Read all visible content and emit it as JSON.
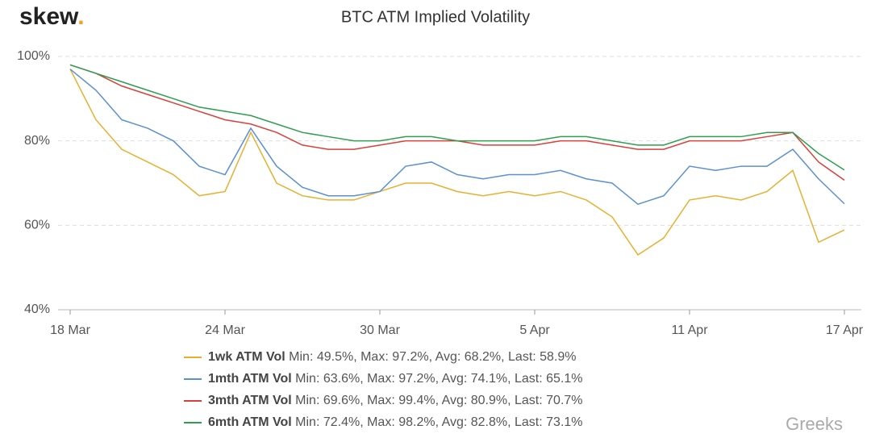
{
  "brand": "skew",
  "brand_dot": ".",
  "watermark": "Greeks",
  "chart_data": {
    "type": "line",
    "title": "BTC ATM Implied Volatility",
    "categories": [
      "18 Mar",
      "19 Mar",
      "20 Mar",
      "21 Mar",
      "22 Mar",
      "23 Mar",
      "24 Mar",
      "25 Mar",
      "26 Mar",
      "27 Mar",
      "28 Mar",
      "29 Mar",
      "30 Mar",
      "31 Mar",
      "1 Apr",
      "2 Apr",
      "3 Apr",
      "4 Apr",
      "5 Apr",
      "6 Apr",
      "7 Apr",
      "8 Apr",
      "9 Apr",
      "10 Apr",
      "11 Apr",
      "12 Apr",
      "13 Apr",
      "14 Apr",
      "15 Apr",
      "16 Apr",
      "17 Apr"
    ],
    "xticks": [
      "18 Mar",
      "24 Mar",
      "30 Mar",
      "5 Apr",
      "11 Apr",
      "17 Apr"
    ],
    "ylim": [
      40,
      100
    ],
    "yticks": [
      {
        "value": 40,
        "label": "40%"
      },
      {
        "value": 60,
        "label": "60%"
      },
      {
        "value": 80,
        "label": "80%"
      },
      {
        "value": 100,
        "label": "100%"
      }
    ],
    "grid": true,
    "series": [
      {
        "name": "1wk ATM Vol",
        "stats": "Min: 49.5%, Max: 97.2%, Avg: 68.2%, Last: 58.9%",
        "color": "#e8b030",
        "values": [
          97,
          85,
          78,
          75,
          72,
          67,
          68,
          82,
          70,
          67,
          66,
          66,
          68,
          70,
          70,
          68,
          67,
          68,
          67,
          68,
          66,
          62,
          53,
          57,
          66,
          67,
          66,
          68,
          73,
          56,
          58.9
        ]
      },
      {
        "name": "1mth ATM Vol",
        "stats": "Min: 63.6%, Max: 97.2%, Avg: 74.1%, Last: 65.1%",
        "color": "#5b8fd6",
        "values": [
          97,
          92,
          85,
          83,
          80,
          74,
          72,
          83,
          74,
          69,
          67,
          67,
          68,
          74,
          75,
          72,
          71,
          72,
          72,
          73,
          71,
          70,
          65,
          67,
          74,
          73,
          74,
          74,
          78,
          71,
          65.1
        ]
      },
      {
        "name": "3mth ATM Vol",
        "stats": "Min: 69.6%, Max: 99.4%, Avg: 80.9%, Last: 70.7%",
        "color": "#d9403a",
        "values": [
          98,
          96,
          93,
          91,
          89,
          87,
          85,
          84,
          82,
          79,
          78,
          78,
          79,
          80,
          80,
          80,
          79,
          79,
          79,
          80,
          80,
          79,
          78,
          78,
          80,
          80,
          80,
          81,
          82,
          75,
          70.7
        ]
      },
      {
        "name": "6mth ATM Vol",
        "stats": "Min: 72.4%, Max: 98.2%, Avg: 82.8%, Last: 73.1%",
        "color": "#2e9e4f",
        "values": [
          98,
          96,
          94,
          92,
          90,
          88,
          87,
          86,
          84,
          82,
          81,
          80,
          80,
          81,
          81,
          80,
          80,
          80,
          80,
          81,
          81,
          80,
          79,
          79,
          81,
          81,
          81,
          82,
          82,
          77,
          73.1
        ]
      }
    ]
  }
}
